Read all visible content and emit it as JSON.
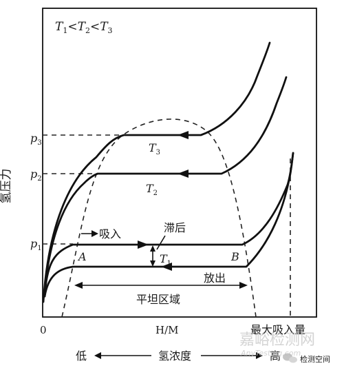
{
  "diagram": {
    "condition": {
      "T": "T",
      "lt": "<",
      "sub1": "1",
      "sub2": "2",
      "sub3": "3"
    },
    "y_axis_label": "氢压力",
    "pressures": [
      {
        "p": "p",
        "sub": "1"
      },
      {
        "p": "p",
        "sub": "2"
      },
      {
        "p": "p",
        "sub": "3"
      }
    ],
    "isotherms": [
      {
        "T": "T",
        "sub": "1"
      },
      {
        "T": "T",
        "sub": "2"
      },
      {
        "T": "T",
        "sub": "3"
      }
    ],
    "point_A": "A",
    "point_B": "B",
    "absorb_label": "吸入",
    "hysteresis_label": "滞后",
    "release_label": "放出",
    "plateau_label": "平坦区域",
    "origin_label": "0",
    "x_axis_mid_label": "H/M",
    "max_absorb_label": "最大吸入量",
    "low_label": "低",
    "concentration_label": "氢浓度",
    "high_label": "高"
  },
  "watermark": {
    "cn": "嘉峪检测网",
    "url": "AnyTesting.com",
    "wechat": "检测空间"
  },
  "colors": {
    "ink": "#111111",
    "watermark": "#c9c9c9"
  }
}
